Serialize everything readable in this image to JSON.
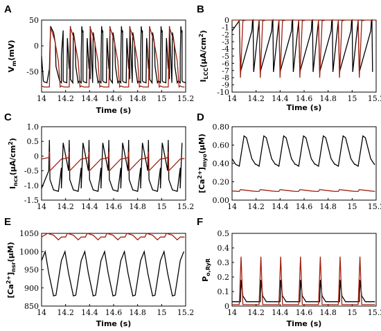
{
  "colors": {
    "black": "#000000",
    "red": "#a02010"
  },
  "chart_data": [
    {
      "panel": "A",
      "type": "line",
      "xlabel": "",
      "ylabel": "V_m (mV)",
      "xlim": [
        14,
        15.2
      ],
      "ylim": [
        -90,
        50
      ],
      "xticks": [
        "14",
        "14.2",
        "14.4",
        "14.6",
        "14.8",
        "15",
        "15.2"
      ],
      "yticks": [
        "50",
        "0",
        "-50"
      ],
      "series": [
        {
          "color": "black",
          "x": [
            14.0,
            14.015,
            14.02,
            14.045,
            14.065,
            14.075,
            14.1,
            14.115,
            14.12,
            14.15,
            14.165,
            14.18,
            14.215,
            14.235,
            14.24,
            14.26,
            14.305,
            14.335,
            14.34
          ],
          "y": [
            -20,
            -68,
            -70,
            -72,
            -45,
            38,
            26,
            5,
            -40,
            -68,
            -72,
            30,
            15,
            -25,
            -65,
            -72,
            -72,
            38,
            26
          ]
        },
        {
          "color": "red",
          "x": [
            14.0,
            14.02,
            14.065,
            14.075,
            14.11,
            14.14,
            14.155,
            14.2
          ],
          "y": [
            -78,
            -80,
            -80,
            36,
            10,
            -30,
            -80,
            -80
          ]
        }
      ]
    },
    {
      "panel": "B",
      "type": "line",
      "xlabel": "",
      "ylabel": "I_LCC (μA/cm²)",
      "xlim": [
        14,
        15.2
      ],
      "ylim": [
        -10,
        0
      ],
      "xticks": [
        "14",
        "14.2",
        "14.4",
        "14.6",
        "14.8",
        "15",
        "15.2"
      ],
      "yticks": [
        "0",
        "-1",
        "-2",
        "-3",
        "-4",
        "-5",
        "-6",
        "-7",
        "-8",
        "-9",
        "-10"
      ],
      "series": [
        {
          "color": "black",
          "x": [
            14.0,
            14.06,
            14.07,
            14.17,
            14.175,
            14.18
          ],
          "y": [
            -1.5,
            -0.1,
            -7.2,
            -0.1,
            0,
            -7.2
          ]
        },
        {
          "color": "red",
          "x": [
            14.0,
            14.06,
            14.07,
            14.09,
            14.12,
            14.2
          ],
          "y": [
            0,
            0,
            -8,
            -0.1,
            0,
            0
          ]
        }
      ]
    },
    {
      "panel": "C",
      "type": "line",
      "xlabel": "",
      "ylabel": "I_ncx (μA/cm²)",
      "xlim": [
        14,
        15.2
      ],
      "ylim": [
        -1.5,
        1.0
      ],
      "xticks": [
        "14",
        "14.2",
        "14.4",
        "14.6",
        "14.8",
        "15",
        "15.2"
      ],
      "yticks": [
        "1.0",
        "0.5",
        "0",
        "-0.5",
        "-1.0",
        "-1.5"
      ],
      "series": [
        {
          "color": "black",
          "x": [
            14.0,
            14.06,
            14.065,
            14.07,
            14.1,
            14.14,
            14.165,
            14.18
          ],
          "y": [
            -1.1,
            -0.5,
            0.55,
            -0.8,
            -1.15,
            -1.2,
            -0.4,
            0.45
          ]
        },
        {
          "color": "red",
          "x": [
            14.0,
            14.06,
            14.065,
            14.07,
            14.2
          ],
          "y": [
            -0.1,
            -0.05,
            0.15,
            -0.5,
            -0.08
          ]
        }
      ]
    },
    {
      "panel": "D",
      "type": "line",
      "xlabel": "",
      "ylabel": "[Ca²⁺]_myo (μM)",
      "xlim": [
        14,
        15.2
      ],
      "ylim": [
        0.0,
        0.8
      ],
      "xticks": [
        "14",
        "14.2",
        "14.4",
        "14.6",
        "14.8",
        "15",
        "15.2"
      ],
      "yticks": [
        "0.80",
        "0.60",
        "0.40",
        "0.20",
        "0.00"
      ],
      "series": [
        {
          "color": "black",
          "x": [
            14.0,
            14.03,
            14.06,
            14.1,
            14.12,
            14.2
          ],
          "y": [
            0.45,
            0.39,
            0.37,
            0.7,
            0.68,
            0.39
          ]
        },
        {
          "color": "red",
          "x": [
            14.0,
            14.06,
            14.07,
            14.2
          ],
          "y": [
            0.1,
            0.095,
            0.115,
            0.095
          ]
        }
      ]
    },
    {
      "panel": "E",
      "type": "line",
      "xlabel": "Time (s)",
      "ylabel": "[Ca²⁺]_nsr (μM)",
      "xlim": [
        14,
        15.2
      ],
      "ylim": [
        850,
        1050
      ],
      "xticks": [
        "14",
        "14.2",
        "14.4",
        "14.6",
        "14.8",
        "15",
        "15.2"
      ],
      "yticks": [
        "1050",
        "1000",
        "950",
        "900",
        "850"
      ],
      "series": [
        {
          "color": "black",
          "x": [
            14.0,
            14.03,
            14.06,
            14.1,
            14.12
          ],
          "y": [
            975,
            1000,
            940,
            878,
            880
          ]
        },
        {
          "color": "red",
          "x": [
            14.0,
            14.05,
            14.1,
            14.14,
            14.2
          ],
          "y": [
            1040,
            1052,
            1045,
            1032,
            1040
          ]
        }
      ]
    },
    {
      "panel": "F",
      "type": "line",
      "xlabel": "Time (s)",
      "ylabel": "P_o,RyR",
      "xlim": [
        14,
        15.2
      ],
      "ylim": [
        0,
        0.5
      ],
      "xticks": [
        "14",
        "14.2",
        "14.4",
        "14.6",
        "14.8",
        "15",
        "15.2"
      ],
      "yticks": [
        "0.5",
        "0.4",
        "0.3",
        "0.2",
        "0.1",
        "0"
      ],
      "series": [
        {
          "color": "black",
          "x": [
            14.0,
            14.07,
            14.075,
            14.09,
            14.12,
            14.2
          ],
          "y": [
            0.03,
            0.03,
            0.18,
            0.07,
            0.03,
            0.03
          ]
        },
        {
          "color": "red",
          "x": [
            14.0,
            14.06,
            14.075,
            14.09,
            14.2
          ],
          "y": [
            0.01,
            0.01,
            0.34,
            0.01,
            0.01
          ]
        }
      ]
    }
  ],
  "panels": {
    "A": {
      "letter": "A",
      "ylabel_main": "V",
      "ylabel_sub": "m",
      "ylabel_rest": "(mV)",
      "xlabel": "Time (s)"
    },
    "B": {
      "letter": "B",
      "ylabel_main": "I",
      "ylabel_sub": "LCC",
      "ylabel_rest": "(μA/cm",
      "ylabel_sup": "2",
      "ylabel_end": ")",
      "xlabel": "Time (s)"
    },
    "C": {
      "letter": "C",
      "ylabel_main": "I",
      "ylabel_sub": "ncx",
      "ylabel_rest": "(μA/cm",
      "ylabel_sup": "2",
      "ylabel_end": ")"
    },
    "D": {
      "letter": "D",
      "ylabel_main": "[Ca",
      "ylabel_sup": "2+",
      "ylabel_rest": "]",
      "ylabel_sub": "myo",
      "ylabel_end": "(μM)"
    },
    "E": {
      "letter": "E",
      "ylabel_main": "[Ca",
      "ylabel_sup": "2+",
      "ylabel_rest": "]",
      "ylabel_sub": "nsr",
      "ylabel_end": "(μM)",
      "xlabel": "Time (s)"
    },
    "F": {
      "letter": "F",
      "ylabel_main": "P",
      "ylabel_sub": "o,RyR",
      "xlabel": "Time (s)"
    }
  }
}
